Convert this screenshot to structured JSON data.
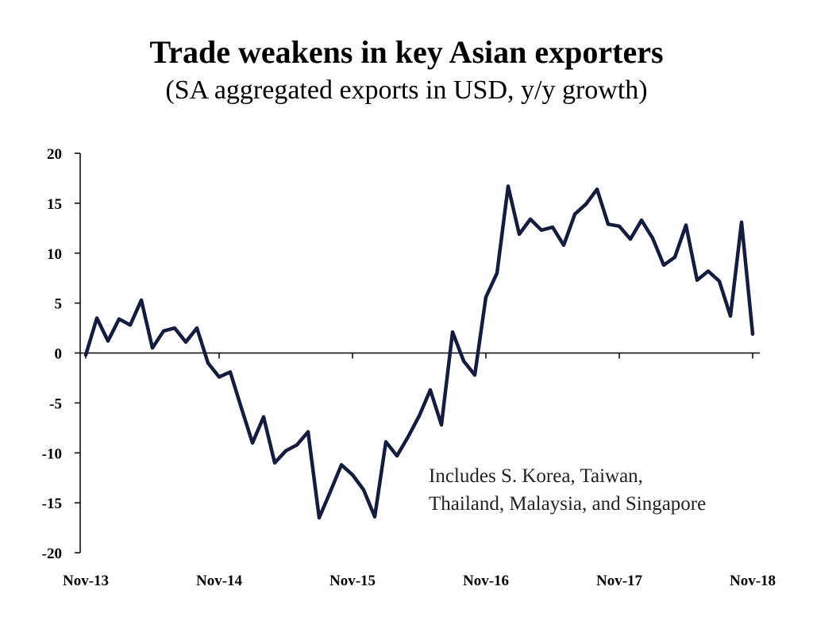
{
  "title": "Trade weakens in key Asian exporters",
  "subtitle": "(SA aggregated exports in USD, y/y growth)",
  "colors": {
    "line": "#141d3e",
    "axis": "#000000",
    "text": "#000000"
  },
  "chart_data": {
    "type": "line",
    "title": "Trade weakens in key Asian exporters",
    "subtitle": "(SA aggregated exports in USD, y/y growth)",
    "xlabel": "",
    "ylabel": "",
    "ylim": [
      -20,
      20
    ],
    "yticks": [
      20,
      15,
      10,
      5,
      0,
      -5,
      -10,
      -15,
      -20
    ],
    "xticks": [
      "Nov-13",
      "Nov-14",
      "Nov-15",
      "Nov-16",
      "Nov-17",
      "Nov-18"
    ],
    "grid": false,
    "legend": "none",
    "annotations": [
      [
        "Includes S. Korea, Taiwan,",
        "Thailand, Malaysia, and Singapore"
      ]
    ],
    "series": [
      {
        "x": [
          "Nov-13",
          "Dec-13",
          "Jan-14",
          "Feb-14",
          "Mar-14",
          "Apr-14",
          "May-14",
          "Jun-14",
          "Jul-14",
          "Aug-14",
          "Sep-14",
          "Oct-14",
          "Nov-14",
          "Dec-14",
          "Jan-15",
          "Feb-15",
          "Mar-15",
          "Apr-15",
          "May-15",
          "Jun-15",
          "Jul-15",
          "Aug-15",
          "Sep-15",
          "Oct-15",
          "Nov-15",
          "Dec-15",
          "Jan-16",
          "Feb-16",
          "Mar-16",
          "Apr-16",
          "May-16",
          "Jun-16",
          "Jul-16",
          "Aug-16",
          "Sep-16",
          "Oct-16",
          "Nov-16",
          "Dec-16",
          "Jan-17",
          "Feb-17",
          "Mar-17",
          "Apr-17",
          "May-17",
          "Jun-17",
          "Jul-17",
          "Aug-17",
          "Sep-17",
          "Oct-17",
          "Nov-17",
          "Dec-17",
          "Jan-18",
          "Feb-18",
          "Mar-18",
          "Apr-18",
          "May-18",
          "Jun-18",
          "Jul-18",
          "Aug-18",
          "Sep-18",
          "Oct-18",
          "Nov-18"
        ],
        "values": [
          -0.2,
          3.5,
          1.2,
          3.4,
          2.8,
          5.3,
          0.5,
          2.2,
          2.5,
          1.1,
          2.5,
          -1.0,
          -2.4,
          -1.9,
          -5.5,
          -9.0,
          -6.4,
          -11.0,
          -9.8,
          -9.2,
          -7.9,
          -16.5,
          -13.9,
          -11.2,
          -12.2,
          -13.7,
          -16.4,
          -8.9,
          -10.3,
          -8.4,
          -6.3,
          -3.7,
          -7.2,
          2.1,
          -0.8,
          -2.2,
          5.6,
          8.0,
          16.7,
          11.9,
          13.4,
          12.3,
          12.6,
          10.8,
          13.9,
          14.9,
          16.4,
          12.9,
          12.7,
          11.4,
          13.3,
          11.5,
          8.8,
          9.6,
          12.8,
          7.3,
          8.2,
          7.2,
          3.7,
          13.1,
          1.9
        ]
      }
    ]
  }
}
